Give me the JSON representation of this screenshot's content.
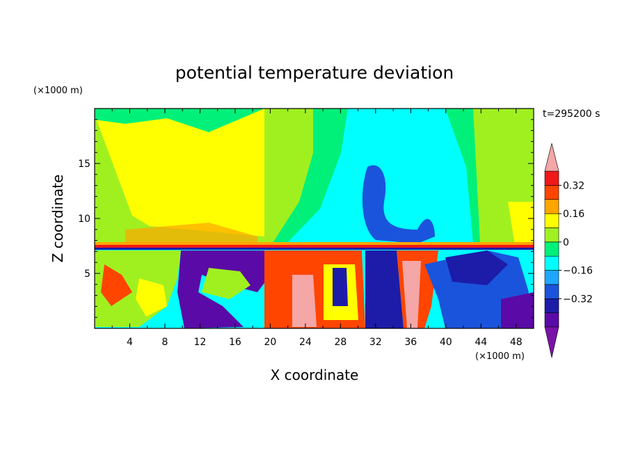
{
  "chart_data": {
    "type": "heatmap",
    "title": "potential temperature deviation",
    "xlabel": "X coordinate",
    "ylabel": "Z coordinate",
    "x_unit": "(×1000 m)",
    "y_unit": "(×1000 m)",
    "time_label": "t=295200 s",
    "xlim": [
      0,
      50
    ],
    "ylim": [
      0,
      20
    ],
    "x_ticks": [
      4,
      8,
      12,
      16,
      20,
      24,
      28,
      32,
      36,
      40,
      44,
      48
    ],
    "y_ticks": [
      5,
      10,
      15
    ],
    "colorbar": {
      "levels": [
        -0.48,
        -0.4,
        -0.32,
        -0.24,
        -0.16,
        -0.08,
        0,
        0.08,
        0.16,
        0.24,
        0.32,
        0.4
      ],
      "tick_labels": [
        "0.32",
        "0.16",
        "0",
        "−0.16",
        "−0.32"
      ],
      "tick_values": [
        0.32,
        0.16,
        0,
        -0.16,
        -0.32
      ],
      "colors": [
        "#7b12a8",
        "#5a0aa6",
        "#1c1ca8",
        "#1a54dc",
        "#1ea7ff",
        "#00ffff",
        "#00f07a",
        "#a0f020",
        "#ffff00",
        "#ffa500",
        "#ff4500",
        "#f01818",
        "#f5a6a6"
      ],
      "extend": "both"
    },
    "regions": [
      {
        "name": "upper-left",
        "x": [
          0,
          19
        ],
        "z": [
          7.5,
          20
        ],
        "value": 0.05
      },
      {
        "name": "upper-yellow-wedge",
        "x": [
          6,
          20
        ],
        "z": [
          8,
          19.5
        ],
        "value": 0.18
      },
      {
        "name": "upper-mid-green",
        "x": [
          19,
          26
        ],
        "z": [
          8,
          20
        ],
        "value": 0.05
      },
      {
        "name": "upper-center-cyan",
        "x": [
          26,
          42
        ],
        "z": [
          8,
          20
        ],
        "value": -0.1
      },
      {
        "name": "upper-blue-tongue",
        "x": [
          30,
          38
        ],
        "z": [
          9,
          15
        ],
        "value": -0.3
      },
      {
        "name": "upper-right-green",
        "x": [
          42,
          50
        ],
        "z": [
          8,
          20
        ],
        "value": 0.05
      },
      {
        "name": "inversion-layer",
        "x": [
          0,
          50
        ],
        "z": [
          7,
          8
        ],
        "value": 0.3
      },
      {
        "name": "lower-left-turbulent",
        "x": [
          0,
          10
        ],
        "z": [
          0,
          7
        ],
        "value": 0.0
      },
      {
        "name": "lower-purple-band",
        "x": [
          9,
          20
        ],
        "z": [
          0,
          7
        ],
        "value": -0.45
      },
      {
        "name": "lower-warm-column-1",
        "x": [
          20,
          30
        ],
        "z": [
          0,
          7
        ],
        "value": 0.4
      },
      {
        "name": "lower-cold-core",
        "x": [
          27,
          29
        ],
        "z": [
          2,
          5
        ],
        "value": -0.4
      },
      {
        "name": "lower-warm-column-2",
        "x": [
          33,
          39
        ],
        "z": [
          0,
          7
        ],
        "value": 0.42
      },
      {
        "name": "lower-right-cold",
        "x": [
          39,
          50
        ],
        "z": [
          0,
          7
        ],
        "value": -0.3
      }
    ]
  }
}
